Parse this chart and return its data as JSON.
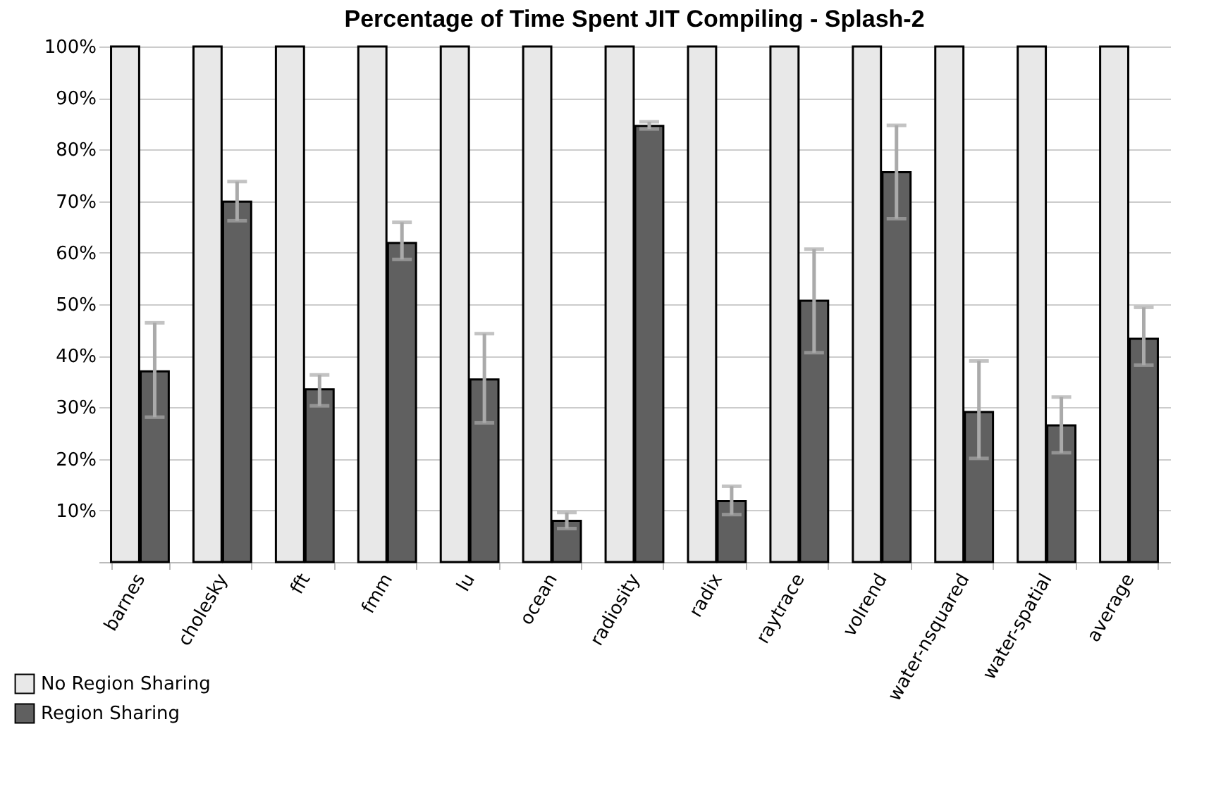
{
  "chart_data": {
    "type": "bar",
    "title": "Percentage of Time Spent JIT Compiling - Splash-2",
    "categories": [
      "barnes",
      "cholesky",
      "fft",
      "fmm",
      "lu",
      "ocean",
      "radiosity",
      "radix",
      "raytrace",
      "volrend",
      "water-nsquared",
      "water-spatial",
      "average"
    ],
    "series": [
      {
        "name": "No Region Sharing",
        "color": "#e8e8e8",
        "values": [
          100,
          100,
          100,
          100,
          100,
          100,
          100,
          100,
          100,
          100,
          100,
          100,
          100
        ]
      },
      {
        "name": "Region Sharing",
        "color": "#606060",
        "values": [
          37,
          69.9,
          33.5,
          61.9,
          35.4,
          8,
          84.6,
          11.8,
          50.7,
          75.6,
          29.1,
          26.5,
          43.3
        ],
        "errors": [
          [
            28.1,
            46.4
          ],
          [
            66.2,
            73.8
          ],
          [
            30.3,
            36.3
          ],
          [
            58.7,
            65.9
          ],
          [
            27,
            44.3
          ],
          [
            6.5,
            9.6
          ],
          [
            84,
            85.4
          ],
          [
            9.2,
            14.7
          ],
          [
            40.6,
            60.7
          ],
          [
            66.6,
            84.7
          ],
          [
            20.1,
            39
          ],
          [
            21.2,
            32
          ],
          [
            38.2,
            49.4
          ]
        ]
      }
    ],
    "ylim": [
      0,
      100
    ],
    "yticks": [
      {
        "value": 0,
        "label": null
      },
      {
        "value": 10,
        "label": "10%"
      },
      {
        "value": 20,
        "label": "20%"
      },
      {
        "value": 30,
        "label": "30%"
      },
      {
        "value": 40,
        "label": "40%"
      },
      {
        "value": 50,
        "label": "50%"
      },
      {
        "value": 60,
        "label": "60%"
      },
      {
        "value": 70,
        "label": "70%"
      },
      {
        "value": 80,
        "label": "80%"
      },
      {
        "value": 90,
        "label": "90%"
      },
      {
        "value": 100,
        "label": "100%"
      }
    ],
    "grid": "y",
    "legend": "bottom left"
  }
}
